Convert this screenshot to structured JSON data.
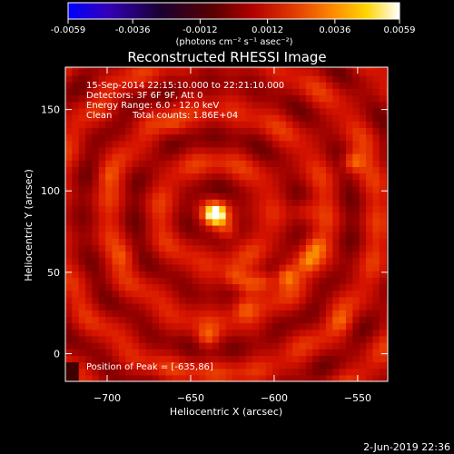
{
  "colorbar": {
    "min": -0.0059,
    "max": 0.0059,
    "tick_labels": [
      "-0.0059",
      "-0.0036",
      "-0.0012",
      "0.0012",
      "0.0036",
      "0.0059"
    ],
    "tick_values": [
      -0.0059,
      -0.0036,
      -0.0012,
      0.0012,
      0.0036,
      0.0059
    ],
    "units_label": "(photons cm⁻² s⁻¹ asec⁻²)",
    "colors": [
      "#0000ff",
      "#3300b8",
      "#000000",
      "#330000",
      "#9b0000",
      "#e03000",
      "#ff8a00",
      "#ffd400",
      "#ffffff"
    ]
  },
  "chart_data": {
    "type": "heatmap",
    "title": "Reconstructed RHESSI Image",
    "xlabel": "Heliocentric X (arcsec)",
    "ylabel": "Heliocentric Y (arcsec)",
    "xlim": [
      -725,
      -532
    ],
    "ylim": [
      -17,
      176
    ],
    "x_ticks": [
      -700,
      -650,
      -600,
      -550
    ],
    "x_tick_labels": [
      "−700",
      "−650",
      "−600",
      "−550"
    ],
    "y_ticks": [
      0,
      50,
      100,
      150
    ],
    "y_tick_labels": [
      "0",
      "50",
      "100",
      "150"
    ],
    "annotations": {
      "time_range": "15-Sep-2014 22:15:10.000 to 22:21:10.000",
      "detectors": "Detectors: 3F 6F 9F, Att 0",
      "energy_range": "Energy Range: 6.0 - 12.0 keV",
      "clean_label": "Clean",
      "total_counts": "Total counts: 1.86E+04",
      "peak_position": "Position of Peak = [-635,86]"
    },
    "peak": [
      -635,
      86
    ],
    "sources": [
      {
        "x": -635,
        "y": 86,
        "intensity": 1.0
      },
      {
        "x": -628,
        "y": 76,
        "intensity": 0.45
      },
      {
        "x": -553,
        "y": 118,
        "intensity": 0.55
      },
      {
        "x": -593,
        "y": 48,
        "intensity": 0.5
      },
      {
        "x": -606,
        "y": 45,
        "intensity": 0.45
      },
      {
        "x": -615,
        "y": 43,
        "intensity": 0.4
      },
      {
        "x": -624,
        "y": 47,
        "intensity": 0.35
      },
      {
        "x": -580,
        "y": 57,
        "intensity": 0.35
      },
      {
        "x": -575,
        "y": 66,
        "intensity": 0.35
      },
      {
        "x": -640,
        "y": 10,
        "intensity": 0.4
      },
      {
        "x": -618,
        "y": 28,
        "intensity": 0.28
      },
      {
        "x": -582,
        "y": 88,
        "intensity": 0.25
      },
      {
        "x": -700,
        "y": 110,
        "intensity": 0.22
      },
      {
        "x": -690,
        "y": 60,
        "intensity": 0.22
      },
      {
        "x": -660,
        "y": 140,
        "intensity": 0.2
      },
      {
        "x": -560,
        "y": 20,
        "intensity": 0.25
      }
    ]
  },
  "footer_date": "2-Jun-2019 22:36"
}
